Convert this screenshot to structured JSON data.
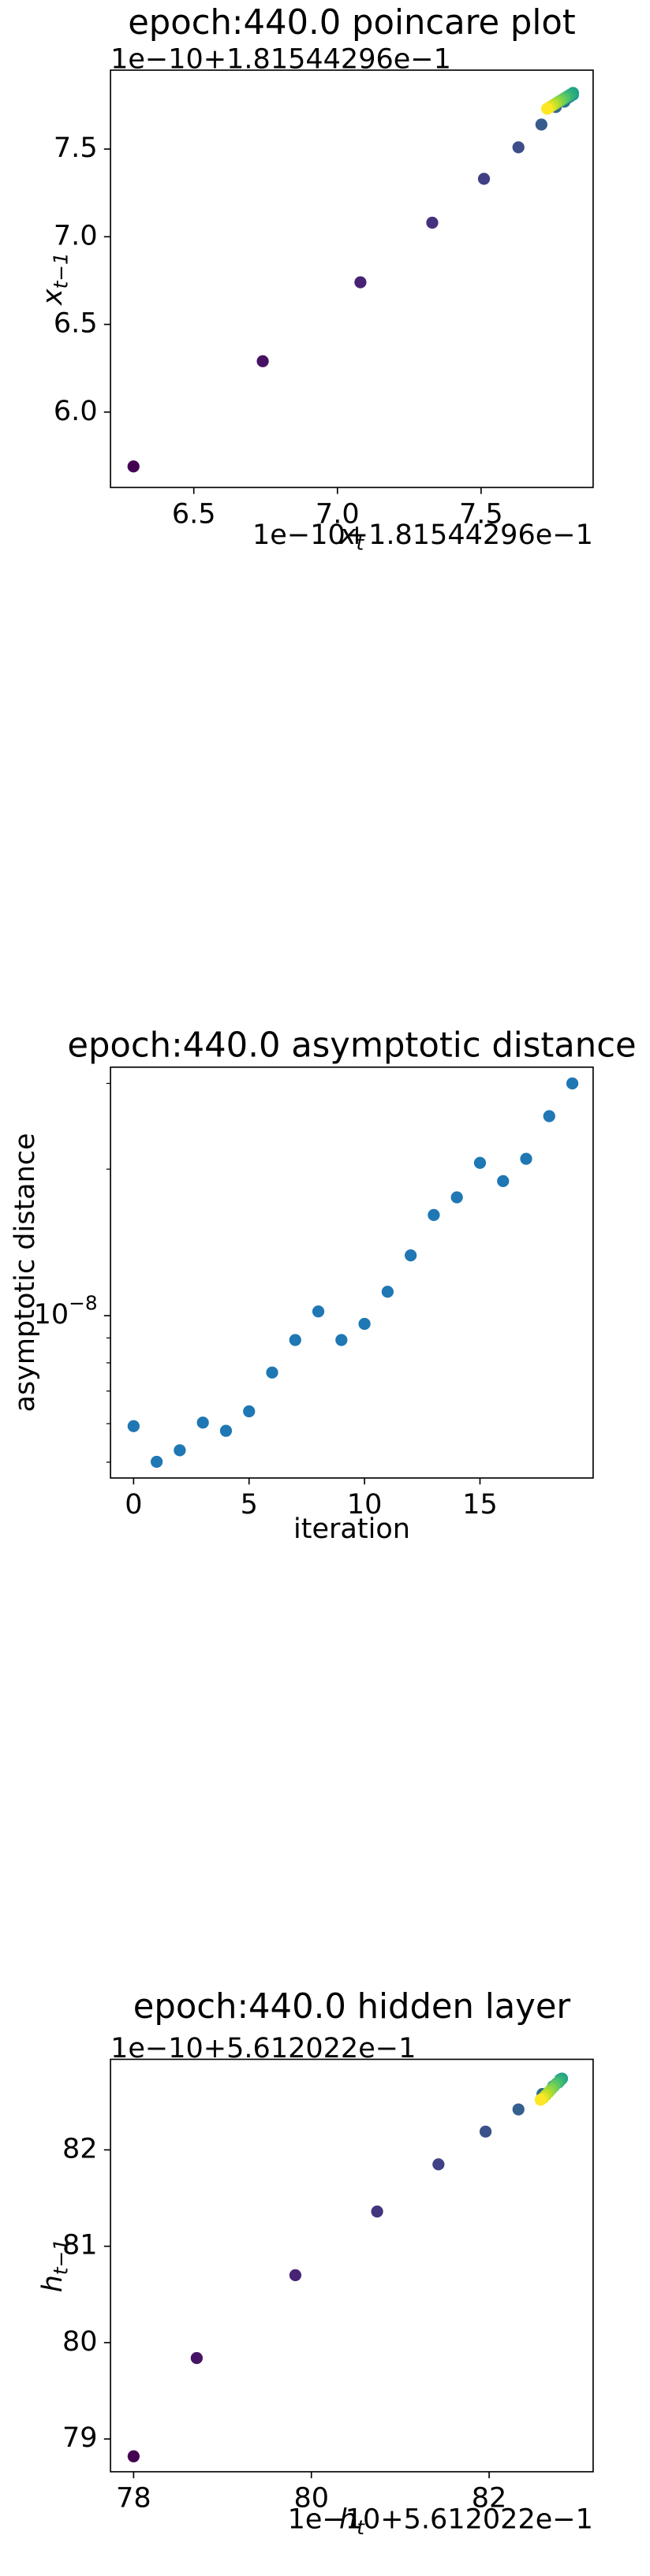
{
  "chart_data": [
    {
      "type": "scatter",
      "title": "epoch:440.0 poincare plot",
      "y_offset_text": "1e−10+1.81544296e−1",
      "x_offset_text": "1e−10+1.81544296e−1",
      "xlabel": {
        "text": "x",
        "subscript": "t"
      },
      "ylabel": {
        "text": "x",
        "subscript": "t−1"
      },
      "colormap": "viridis",
      "x": [
        6.29,
        6.74,
        7.08,
        7.33,
        7.51,
        7.63,
        7.71,
        7.76,
        7.79,
        7.8,
        7.81,
        7.82,
        7.82,
        7.81,
        7.8,
        7.79,
        7.78,
        7.77,
        7.76,
        7.75,
        7.74,
        7.73
      ],
      "values": [
        5.69,
        6.29,
        6.74,
        7.08,
        7.33,
        7.51,
        7.64,
        7.74,
        7.77,
        7.79,
        7.8,
        7.81,
        7.82,
        7.81,
        7.8,
        7.79,
        7.78,
        7.77,
        7.76,
        7.75,
        7.74,
        7.73
      ],
      "xlim": [
        6.21,
        7.89
      ],
      "ylim": [
        5.57,
        7.95
      ],
      "xticks": [
        6.5,
        {
          "value": 7.0,
          "label": "7.0"
        },
        7.5
      ],
      "yticks": [
        {
          "value": 6.0,
          "label": "6.0"
        },
        6.5,
        {
          "value": 7.0,
          "label": "7.0"
        },
        7.5
      ]
    },
    {
      "type": "scatter",
      "title": "epoch:440.0 asymptotic distance",
      "xlabel": {
        "text": "iteration"
      },
      "ylabel": {
        "text": "asymptotic distance"
      },
      "color": "#1f77b4",
      "log_y": true,
      "x": [
        0,
        1,
        2,
        3,
        4,
        5,
        6,
        7,
        8,
        9,
        10,
        11,
        12,
        13,
        14,
        15,
        16,
        17,
        18,
        19
      ],
      "values": [
        5.93e-09,
        5.01e-09,
        5.29e-09,
        6.03e-09,
        5.8e-09,
        6.36e-09,
        7.64e-09,
        8.91e-09,
        1.02e-08,
        8.91e-09,
        9.62e-09,
        1.12e-08,
        1.33e-08,
        1.61e-08,
        1.75e-08,
        2.06e-08,
        1.89e-08,
        2.1e-08,
        2.57e-08,
        3e-08
      ],
      "xlim": [
        -1.0,
        19.9
      ],
      "ylim": [
        4.64e-09,
        3.24e-08
      ],
      "xticks": [
        0,
        5,
        10,
        15
      ],
      "yticks": [
        {
          "value": 1e-08,
          "label": "10",
          "exponent": "−8"
        }
      ],
      "yminorticks": [
        5e-09,
        6e-09,
        7e-09,
        8e-09,
        9e-09,
        2e-08,
        3e-08
      ]
    },
    {
      "type": "scatter",
      "title": "epoch:440.0 hidden layer",
      "y_offset_text": "1e−10+5.612022e−1",
      "x_offset_text": "1e−10+5.612022e−1",
      "xlabel": {
        "text": "h",
        "subscript": "t"
      },
      "ylabel": {
        "text": "h",
        "subscript": "t−1"
      },
      "colormap": "viridis",
      "x": [
        78.0,
        78.71,
        79.82,
        80.74,
        81.43,
        81.96,
        82.33,
        82.6,
        82.72,
        82.78,
        82.8,
        82.82,
        82.81,
        82.79,
        82.76,
        82.73,
        82.7,
        82.67,
        82.64,
        82.61,
        82.58
      ],
      "values": [
        78.82,
        79.84,
        80.7,
        81.36,
        81.85,
        82.19,
        82.42,
        82.58,
        82.66,
        82.7,
        82.73,
        82.74,
        82.73,
        82.71,
        82.69,
        82.66,
        82.63,
        82.6,
        82.57,
        82.54,
        82.52
      ],
      "xlim": [
        77.74,
        83.17
      ],
      "ylim": [
        78.66,
        82.94
      ],
      "xticks": [
        78,
        80,
        82
      ],
      "yticks": [
        79,
        80,
        81,
        82
      ]
    }
  ]
}
